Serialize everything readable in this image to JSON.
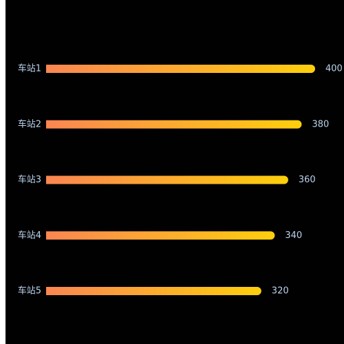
{
  "chart_data": {
    "type": "bar",
    "orientation": "horizontal",
    "categories": [
      "车站1",
      "车站2",
      "车站3",
      "车站4",
      "车站5"
    ],
    "values": [
      400,
      380,
      360,
      340,
      320
    ],
    "title": "",
    "xlabel": "",
    "ylabel": "",
    "xlim": [
      0,
      400
    ],
    "grid": false,
    "legend": "none",
    "data_labels": true
  },
  "colors": {
    "background": "#010101",
    "bar_gradient_start": "#fa8652",
    "bar_gradient_end": "#fecf0c",
    "label_text": "#bcd3ec"
  }
}
